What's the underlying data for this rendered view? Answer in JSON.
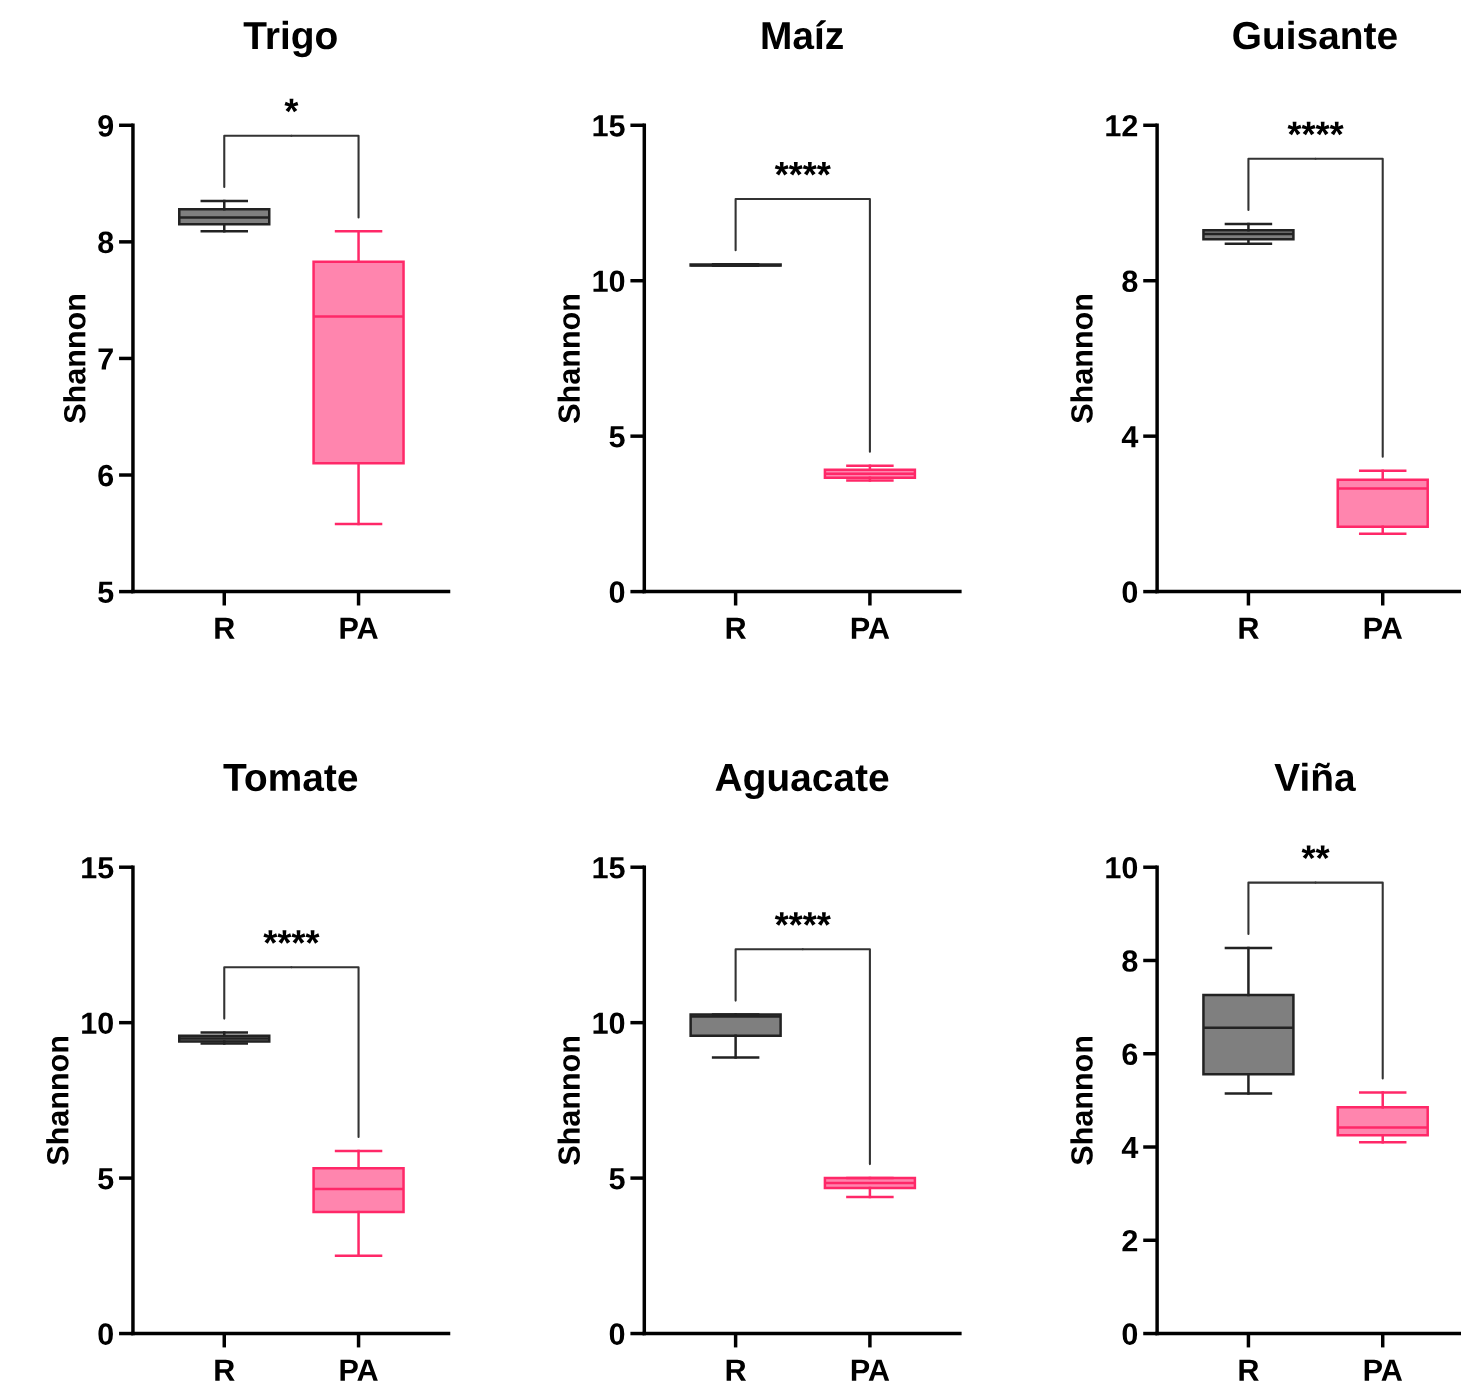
{
  "chart_data": [
    {
      "type": "box",
      "title": "Trigo",
      "ylabel": "Shannon",
      "categories": [
        "R",
        "PA"
      ],
      "colors": [
        "#7f7f7f",
        "#ff85ae"
      ],
      "ylim": [
        5,
        9
      ],
      "yticks": [
        5,
        6,
        7,
        8,
        9
      ],
      "annotations": [
        "*"
      ],
      "boxes": [
        {
          "low": 8.09,
          "q1": 8.15,
          "median": 8.21,
          "q3": 8.28,
          "high": 8.35
        },
        {
          "low": 5.58,
          "q1": 6.1,
          "median": 7.36,
          "q3": 7.83,
          "high": 8.09
        }
      ]
    },
    {
      "type": "box",
      "title": "Maíz",
      "ylabel": "Shannon",
      "categories": [
        "R",
        "PA"
      ],
      "colors": [
        "#7f7f7f",
        "#ff85ae"
      ],
      "ylim": [
        0,
        15
      ],
      "yticks": [
        0,
        5,
        10,
        15
      ],
      "annotations": [
        "****"
      ],
      "boxes": [
        {
          "low": 10.48,
          "q1": 10.49,
          "median": 10.5,
          "q3": 10.52,
          "high": 10.53
        },
        {
          "low": 3.57,
          "q1": 3.66,
          "median": 3.79,
          "q3": 3.92,
          "high": 4.05
        }
      ]
    },
    {
      "type": "box",
      "title": "Guisante",
      "ylabel": "Shannon",
      "categories": [
        "R",
        "PA"
      ],
      "colors": [
        "#7f7f7f",
        "#ff85ae"
      ],
      "ylim": [
        0,
        12
      ],
      "yticks": [
        0,
        4,
        8,
        12
      ],
      "annotations": [
        "****"
      ],
      "boxes": [
        {
          "low": 8.95,
          "q1": 9.07,
          "median": 9.2,
          "q3": 9.3,
          "high": 9.46
        },
        {
          "low": 1.49,
          "q1": 1.67,
          "median": 2.65,
          "q3": 2.88,
          "high": 3.11
        }
      ]
    },
    {
      "type": "box",
      "title": "Tomate",
      "ylabel": "Shannon",
      "categories": [
        "R",
        "PA"
      ],
      "colors": [
        "#7f7f7f",
        "#ff85ae"
      ],
      "ylim": [
        0,
        15
      ],
      "yticks": [
        0,
        5,
        10,
        15
      ],
      "annotations": [
        "****"
      ],
      "boxes": [
        {
          "low": 9.33,
          "q1": 9.39,
          "median": 9.49,
          "q3": 9.58,
          "high": 9.68
        },
        {
          "low": 2.5,
          "q1": 3.91,
          "median": 4.65,
          "q3": 5.32,
          "high": 5.87
        }
      ]
    },
    {
      "type": "box",
      "title": "Aguacate",
      "ylabel": "Shannon",
      "categories": [
        "R",
        "PA"
      ],
      "colors": [
        "#7f7f7f",
        "#ff85ae"
      ],
      "ylim": [
        0,
        15
      ],
      "yticks": [
        0,
        5,
        10,
        15
      ],
      "annotations": [
        "****"
      ],
      "boxes": [
        {
          "low": 8.88,
          "q1": 9.58,
          "median": 10.2,
          "q3": 10.26,
          "high": 10.26
        },
        {
          "low": 4.39,
          "q1": 4.68,
          "median": 4.84,
          "q3": 5.0,
          "high": 5.0
        }
      ]
    },
    {
      "type": "box",
      "title": "Viña",
      "ylabel": "Shannon",
      "categories": [
        "R",
        "PA"
      ],
      "colors": [
        "#7f7f7f",
        "#ff85ae"
      ],
      "ylim": [
        0,
        10
      ],
      "yticks": [
        0,
        2,
        4,
        6,
        8,
        10
      ],
      "annotations": [
        "**"
      ],
      "boxes": [
        {
          "low": 5.15,
          "q1": 5.56,
          "median": 6.56,
          "q3": 7.26,
          "high": 8.27
        },
        {
          "low": 4.1,
          "q1": 4.25,
          "median": 4.42,
          "q3": 4.85,
          "high": 5.17
        }
      ]
    }
  ]
}
